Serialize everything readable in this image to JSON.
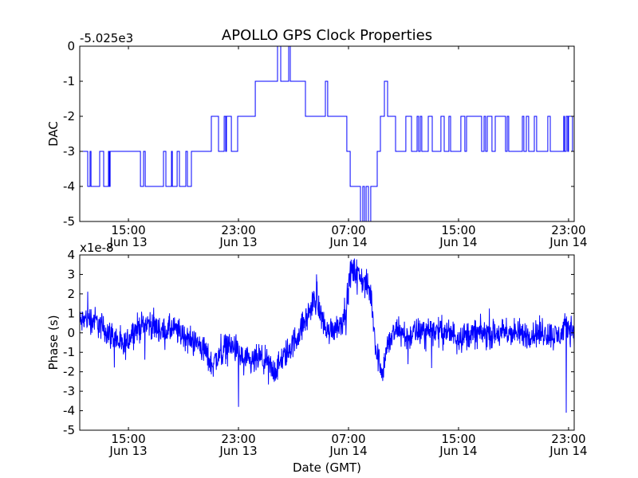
{
  "title": "APOLLO GPS Clock Properties",
  "chart_data": [
    {
      "type": "line",
      "step": true,
      "ylabel": "DAC",
      "offset_label": "-5.025e3",
      "xlim": [
        11.46,
        47.41
      ],
      "ylim": [
        -5,
        0
      ],
      "yticks": [
        "0",
        "-1",
        "-2",
        "-3",
        "-4",
        "-5"
      ],
      "ytick_values": [
        0,
        -1,
        -2,
        -3,
        -4,
        -5
      ],
      "xtick_hours": [
        15,
        23,
        31,
        39,
        47
      ],
      "xticks": [
        [
          "15:00",
          "Jun 13"
        ],
        [
          "23:00",
          "Jun 13"
        ],
        [
          "07:00",
          "Jun 14"
        ],
        [
          "15:00",
          "Jun 14"
        ],
        [
          "23:00",
          "Jun 14"
        ]
      ],
      "x_units": "hours since Jun 13 00:00 GMT",
      "color": "#0000ff",
      "points": [
        [
          11.46,
          -3
        ],
        [
          12.04,
          -4
        ],
        [
          12.21,
          -3
        ],
        [
          12.28,
          -4
        ],
        [
          12.91,
          -3
        ],
        [
          13.2,
          -4
        ],
        [
          13.55,
          -3
        ],
        [
          13.61,
          -4
        ],
        [
          13.67,
          -3
        ],
        [
          15.87,
          -4
        ],
        [
          16.1,
          -3
        ],
        [
          16.22,
          -4
        ],
        [
          17.55,
          -3
        ],
        [
          17.72,
          -4
        ],
        [
          18.13,
          -3
        ],
        [
          18.19,
          -4
        ],
        [
          18.54,
          -3
        ],
        [
          18.71,
          -4
        ],
        [
          19.17,
          -3
        ],
        [
          19.29,
          -4
        ],
        [
          19.58,
          -3
        ],
        [
          21.03,
          -2
        ],
        [
          21.55,
          -3
        ],
        [
          21.96,
          -2
        ],
        [
          22.07,
          -3
        ],
        [
          22.13,
          -2
        ],
        [
          22.48,
          -3
        ],
        [
          22.94,
          -2
        ],
        [
          24.22,
          -1
        ],
        [
          25.84,
          0
        ],
        [
          26.07,
          -1
        ],
        [
          26.65,
          0
        ],
        [
          26.77,
          -1
        ],
        [
          27.87,
          -2
        ],
        [
          29.32,
          -1
        ],
        [
          29.49,
          -2
        ],
        [
          30.88,
          -3
        ],
        [
          31.12,
          -4
        ],
        [
          31.87,
          -5
        ],
        [
          32.04,
          -4
        ],
        [
          32.16,
          -5
        ],
        [
          32.28,
          -4
        ],
        [
          32.45,
          -5
        ],
        [
          32.62,
          -4
        ],
        [
          33.09,
          -3
        ],
        [
          33.32,
          -2
        ],
        [
          33.61,
          -1
        ],
        [
          33.84,
          -2
        ],
        [
          34.42,
          -3
        ],
        [
          35.17,
          -2
        ],
        [
          35.58,
          -3
        ],
        [
          35.99,
          -2
        ],
        [
          36.1,
          -3
        ],
        [
          36.22,
          -2
        ],
        [
          36.33,
          -3
        ],
        [
          36.8,
          -2
        ],
        [
          37.09,
          -3
        ],
        [
          37.72,
          -2
        ],
        [
          37.96,
          -3
        ],
        [
          38.3,
          -2
        ],
        [
          38.42,
          -3
        ],
        [
          39.17,
          -2
        ],
        [
          39.46,
          -3
        ],
        [
          39.58,
          -2
        ],
        [
          40.68,
          -3
        ],
        [
          40.86,
          -2
        ],
        [
          40.97,
          -3
        ],
        [
          41.09,
          -2
        ],
        [
          41.43,
          -3
        ],
        [
          41.67,
          -2
        ],
        [
          42.42,
          -3
        ],
        [
          42.54,
          -2
        ],
        [
          42.65,
          -3
        ],
        [
          43.64,
          -2
        ],
        [
          43.75,
          -3
        ],
        [
          43.93,
          -2
        ],
        [
          44.1,
          -3
        ],
        [
          44.51,
          -2
        ],
        [
          44.68,
          -3
        ],
        [
          45.49,
          -2
        ],
        [
          45.67,
          -3
        ],
        [
          46.65,
          -2
        ],
        [
          46.71,
          -3
        ],
        [
          46.83,
          -2
        ],
        [
          46.94,
          -3
        ],
        [
          47.0,
          -2
        ],
        [
          47.29,
          -3
        ],
        [
          47.41,
          -3
        ]
      ]
    },
    {
      "type": "line",
      "ylabel": "Phase (s)",
      "xlabel": "Date (GMT)",
      "offset_label": "x1e-8",
      "xlim": [
        11.46,
        47.41
      ],
      "ylim": [
        -5,
        4
      ],
      "yticks": [
        "4",
        "3",
        "2",
        "1",
        "0",
        "-1",
        "-2",
        "-3",
        "-4",
        "-5"
      ],
      "ytick_values": [
        4,
        3,
        2,
        1,
        0,
        -1,
        -2,
        -3,
        -4,
        -5
      ],
      "xtick_hours": [
        15,
        23,
        31,
        39,
        47
      ],
      "xticks": [
        [
          "15:00",
          "Jun 13"
        ],
        [
          "23:00",
          "Jun 13"
        ],
        [
          "07:00",
          "Jun 14"
        ],
        [
          "15:00",
          "Jun 14"
        ],
        [
          "23:00",
          "Jun 14"
        ]
      ],
      "x_units": "hours since Jun 13 00:00 GMT",
      "y_units": "1e-8 s",
      "color": "#0000ff",
      "noise_amplitude": 0.45,
      "trend": [
        [
          11.46,
          0.5
        ],
        [
          12.04,
          0.8
        ],
        [
          12.62,
          0.6
        ],
        [
          13.2,
          0.2
        ],
        [
          14.07,
          -0.3
        ],
        [
          14.65,
          -0.8
        ],
        [
          15.23,
          0.0
        ],
        [
          15.81,
          0.3
        ],
        [
          16.39,
          0.5
        ],
        [
          16.97,
          0.3
        ],
        [
          17.55,
          0.0
        ],
        [
          18.13,
          0.2
        ],
        [
          18.71,
          0.0
        ],
        [
          19.29,
          -0.3
        ],
        [
          19.87,
          -0.5
        ],
        [
          20.45,
          -0.8
        ],
        [
          21.03,
          -1.6
        ],
        [
          21.61,
          -1.2
        ],
        [
          22.19,
          -0.6
        ],
        [
          22.77,
          -0.8
        ],
        [
          23.35,
          -1.4
        ],
        [
          23.93,
          -1.6
        ],
        [
          24.51,
          -1.3
        ],
        [
          25.09,
          -1.6
        ],
        [
          25.67,
          -2.0
        ],
        [
          26.25,
          -1.3
        ],
        [
          26.83,
          -0.7
        ],
        [
          27.41,
          0.0
        ],
        [
          27.99,
          0.8
        ],
        [
          28.57,
          1.8
        ],
        [
          28.97,
          1.0
        ],
        [
          29.43,
          0.0
        ],
        [
          30.01,
          0.3
        ],
        [
          30.48,
          0.5
        ],
        [
          30.88,
          1.5
        ],
        [
          31.17,
          3.2
        ],
        [
          31.75,
          3.0
        ],
        [
          32.22,
          2.5
        ],
        [
          32.62,
          2.0
        ],
        [
          33.03,
          -1.0
        ],
        [
          33.49,
          -2.0
        ],
        [
          33.78,
          -0.8
        ],
        [
          34.07,
          -0.3
        ],
        [
          34.65,
          0.2
        ],
        [
          35.23,
          -0.3
        ],
        [
          35.81,
          0.0
        ],
        [
          36.97,
          0.2
        ],
        [
          38.13,
          0.0
        ],
        [
          39.29,
          -0.2
        ],
        [
          40.45,
          0.0
        ],
        [
          41.61,
          -0.1
        ],
        [
          42.77,
          0.0
        ],
        [
          43.93,
          -0.1
        ],
        [
          45.09,
          0.0
        ],
        [
          46.25,
          -0.2
        ],
        [
          46.83,
          0.3
        ],
        [
          47.41,
          0.2
        ]
      ],
      "spikes": [
        [
          23.0,
          -3.8
        ],
        [
          28.68,
          3.0
        ],
        [
          46.83,
          -4.1
        ]
      ]
    }
  ]
}
